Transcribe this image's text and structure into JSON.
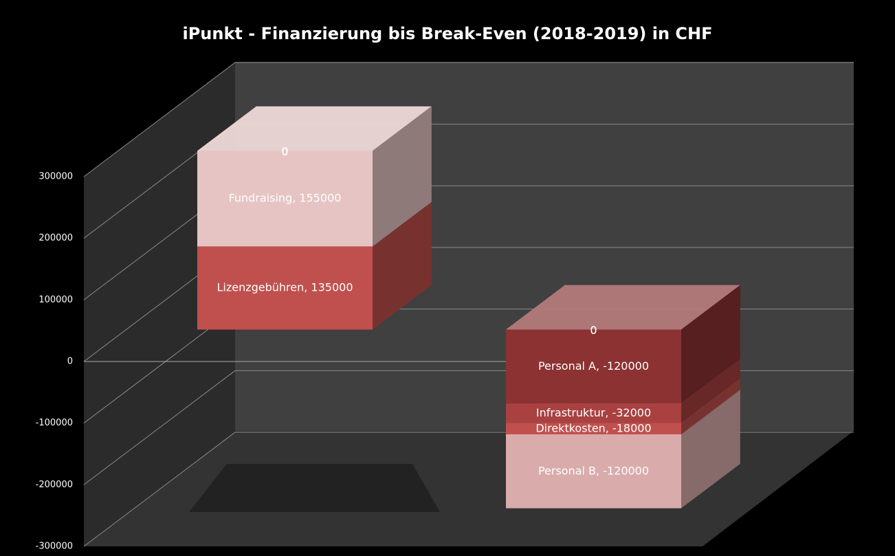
{
  "chart_data": {
    "type": "bar3d_stacked",
    "title": "iPunkt - Finanzierung bis Break-Even (2018-2019) in CHF",
    "categories": [
      null,
      null
    ],
    "series": [
      {
        "name": "Lizenzgebühren",
        "color": "#c0504d",
        "values": [
          135000,
          0
        ],
        "value_labels": [
          "Lizenzgebühren, 135000",
          "0"
        ]
      },
      {
        "name": "Fundraising",
        "color": "#e6c4c4",
        "values": [
          155000,
          0
        ],
        "value_labels": [
          "Fundraising, 155000",
          "0"
        ]
      },
      {
        "name": "Personal A",
        "color": "#8c3232",
        "values": [
          0,
          -120000
        ],
        "value_labels": [
          "0",
          "Personal A, -120000"
        ]
      },
      {
        "name": "Infrastruktur",
        "color": "#a94141",
        "values": [
          0,
          -32000
        ],
        "value_labels": [
          "0",
          "Infrastruktur, -32000"
        ]
      },
      {
        "name": "Direktkosten",
        "color": "#c0504d",
        "values": [
          0,
          -18000
        ],
        "value_labels": [
          "0",
          "Direktkosten, -18000"
        ]
      },
      {
        "name": "Personal B",
        "color": "#d9abab",
        "values": [
          0,
          -120000
        ],
        "value_labels": [
          "0",
          "Personal B, -120000"
        ]
      }
    ],
    "ylim": [
      -300000,
      300000
    ],
    "yticks": [
      -300000,
      -200000,
      -100000,
      0,
      100000,
      200000,
      300000
    ],
    "grid": true
  }
}
